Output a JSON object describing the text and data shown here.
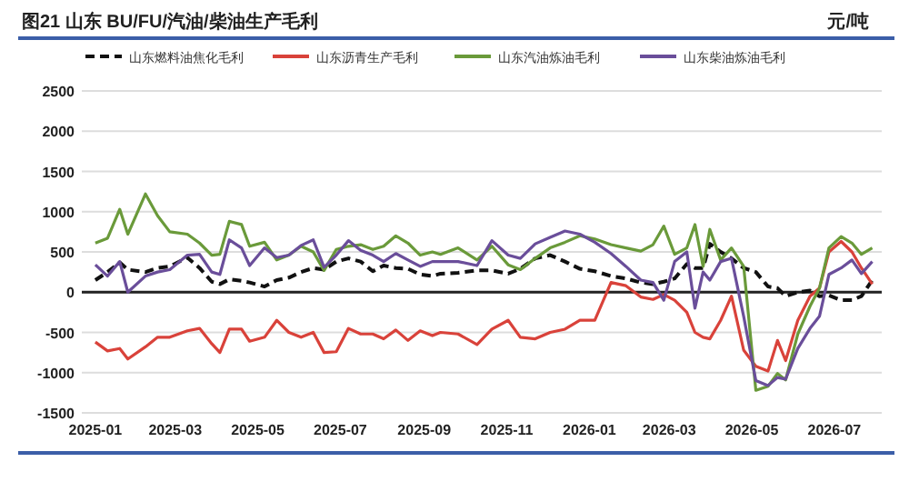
{
  "chart_data": {
    "type": "line",
    "title": "图21  山东 BU/FU/汽油/柴油生产毛利",
    "ylabel": "元/吨",
    "x": [
      "2025-01-01",
      "2025-01-10",
      "2025-01-19",
      "2025-01-25",
      "2025-02-07",
      "2025-02-16",
      "2025-02-25",
      "2025-03-10",
      "2025-03-19",
      "2025-03-28",
      "2025-04-03",
      "2025-04-10",
      "2025-04-19",
      "2025-04-25",
      "2025-05-06",
      "2025-05-15",
      "2025-05-24",
      "2025-06-02",
      "2025-06-11",
      "2025-06-19",
      "2025-06-28",
      "2025-07-07",
      "2025-07-16",
      "2025-07-25",
      "2025-08-02",
      "2025-08-11",
      "2025-08-20",
      "2025-08-29",
      "2025-09-07",
      "2025-09-13",
      "2025-09-26",
      "2025-10-10",
      "2025-10-21",
      "2025-11-02",
      "2025-11-11",
      "2025-11-22",
      "2025-12-03",
      "2025-12-14",
      "2025-12-25",
      "2026-01-05",
      "2026-01-17",
      "2026-01-28",
      "2026-02-08",
      "2026-02-17",
      "2026-02-25",
      "2026-03-05",
      "2026-03-14",
      "2026-03-20",
      "2026-03-26",
      "2026-03-31",
      "2026-04-08",
      "2026-04-16",
      "2026-04-25",
      "2026-05-04",
      "2026-05-13",
      "2026-05-20",
      "2026-05-26",
      "2026-06-04",
      "2026-06-13",
      "2026-06-20",
      "2026-06-27",
      "2026-07-06",
      "2026-07-14",
      "2026-07-21",
      "2026-07-29"
    ],
    "series": [
      {
        "name": "山东燃料油焦化毛利",
        "color": "#111111",
        "line_style": "dashed",
        "values": [
          150,
          250,
          370,
          280,
          250,
          300,
          320,
          430,
          300,
          130,
          100,
          160,
          140,
          120,
          70,
          150,
          180,
          250,
          300,
          280,
          380,
          420,
          380,
          260,
          330,
          300,
          290,
          220,
          200,
          230,
          240,
          270,
          270,
          230,
          290,
          420,
          460,
          380,
          290,
          260,
          200,
          170,
          120,
          100,
          130,
          170,
          350,
          300,
          300,
          600,
          500,
          420,
          300,
          250,
          70,
          50,
          -50,
          0,
          20,
          -50,
          -40,
          -100,
          -100,
          -50,
          150
        ]
      },
      {
        "name": "山东沥青生产毛利",
        "color": "#d9423a",
        "values": [
          -620,
          -730,
          -700,
          -830,
          -680,
          -560,
          -560,
          -480,
          -450,
          -640,
          -750,
          -460,
          -460,
          -610,
          -560,
          -350,
          -500,
          -560,
          -500,
          -750,
          -740,
          -450,
          -520,
          -520,
          -580,
          -470,
          -600,
          -480,
          -540,
          -500,
          -520,
          -650,
          -460,
          -350,
          -560,
          -580,
          -500,
          -460,
          -350,
          -350,
          120,
          80,
          -60,
          -90,
          -30,
          -100,
          -250,
          -500,
          -560,
          -580,
          -350,
          -50,
          -720,
          -920,
          -980,
          -600,
          -850,
          -350,
          -50,
          50,
          500,
          630,
          500,
          300,
          100
        ]
      },
      {
        "name": "山东汽油炼油毛利",
        "color": "#6a9a3a",
        "values": [
          610,
          670,
          1030,
          720,
          1220,
          950,
          750,
          720,
          610,
          460,
          470,
          880,
          840,
          570,
          620,
          400,
          460,
          570,
          500,
          270,
          530,
          570,
          590,
          530,
          570,
          700,
          610,
          460,
          500,
          470,
          550,
          400,
          570,
          340,
          280,
          420,
          550,
          620,
          700,
          660,
          590,
          550,
          510,
          590,
          820,
          470,
          550,
          840,
          320,
          780,
          400,
          550,
          320,
          -1220,
          -1170,
          -1010,
          -1090,
          -520,
          -175,
          50,
          550,
          690,
          610,
          470,
          550
        ]
      },
      {
        "name": "山东柴油炼油毛利",
        "color": "#6a4e9a",
        "values": [
          340,
          200,
          380,
          0,
          200,
          250,
          280,
          460,
          470,
          250,
          220,
          650,
          550,
          330,
          550,
          430,
          460,
          580,
          650,
          310,
          460,
          640,
          520,
          460,
          380,
          480,
          400,
          320,
          380,
          380,
          380,
          330,
          640,
          460,
          420,
          600,
          680,
          760,
          720,
          620,
          480,
          320,
          150,
          120,
          -100,
          380,
          500,
          -200,
          250,
          150,
          380,
          420,
          -300,
          -1100,
          -1160,
          -1060,
          -1080,
          -700,
          -450,
          -300,
          220,
          300,
          400,
          230,
          380
        ]
      }
    ],
    "xlim": [
      "2024-12-22",
      "2026-08-05"
    ],
    "xticks": [
      "2025-01",
      "2025-03",
      "2025-05",
      "2025-07",
      "2025-09",
      "2025-11",
      "2026-01",
      "2026-03",
      "2026-05",
      "2026-07"
    ],
    "ylim": [
      -1500,
      2500
    ],
    "yticks": [
      -1500,
      -1000,
      -500,
      0,
      500,
      1000,
      1500,
      2000,
      2500
    ],
    "grid": "y",
    "legend": "top"
  }
}
